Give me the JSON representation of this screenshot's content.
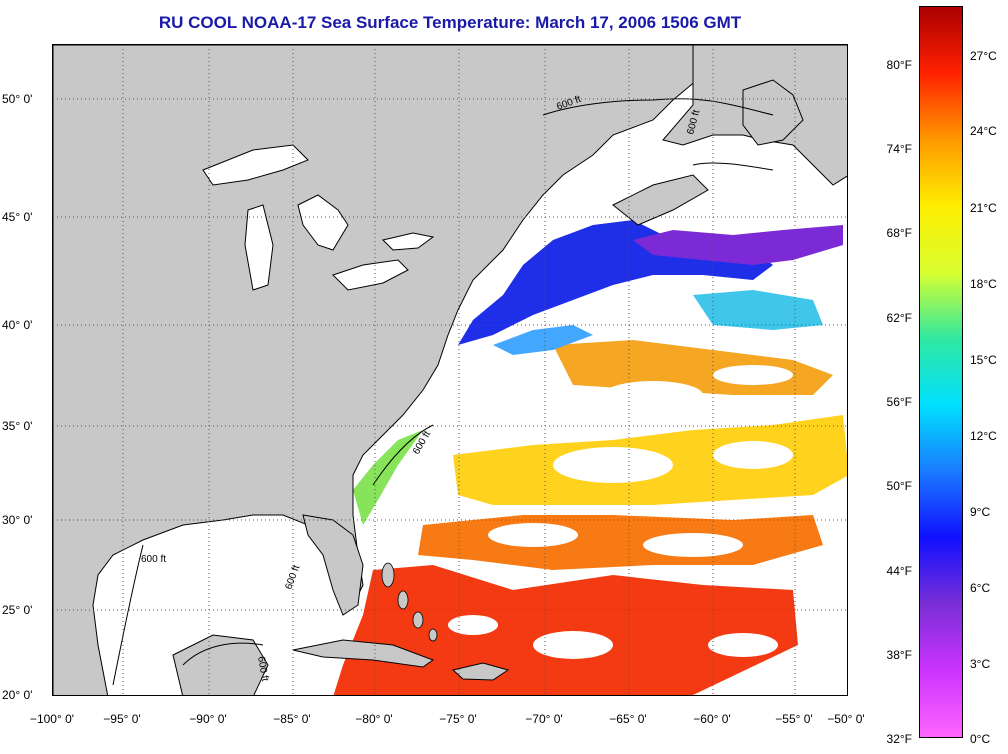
{
  "title": "RU COOL  NOAA-17  Sea Surface Temperature:  March 17, 2006 1506 GMT",
  "map": {
    "latitude_labels": [
      "50° 0'",
      "45° 0'",
      "40° 0'",
      "35° 0'",
      "30° 0'",
      "25° 0'",
      "20° 0'"
    ],
    "longitude_labels": [
      "−100° 0'",
      "−95° 0'",
      "−90° 0'",
      "−85° 0'",
      "−80° 0'",
      "−75° 0'",
      "−70° 0'",
      "−65° 0'",
      "−60° 0'",
      "−55° 0'",
      "−50° 0'"
    ],
    "isobath_labels": [
      "600 ft",
      "600 ft",
      "600 ft",
      "600 ft",
      "600 ft",
      "600 ft"
    ],
    "colors": {
      "land": "#c8c8c8",
      "ocean_cloud": "#ffffff",
      "grid": "#555555",
      "title": "#1a1aa8"
    }
  },
  "colorbar": {
    "fahrenheit_labels": [
      "80°F",
      "74°F",
      "68°F",
      "62°F",
      "56°F",
      "50°F",
      "44°F",
      "38°F",
      "32°F"
    ],
    "celsius_labels": [
      "27°C",
      "24°C",
      "21°C",
      "18°C",
      "15°C",
      "12°C",
      "9°C",
      "6°C",
      "3°C",
      "0°C"
    ],
    "colors": [
      "#ff66ff",
      "#cc33ff",
      "#7a2fd6",
      "#1010ff",
      "#1a7aff",
      "#00e0ff",
      "#30e8a0",
      "#d8ff30",
      "#ffee00",
      "#ff9900",
      "#ff2200",
      "#aa0000"
    ]
  }
}
